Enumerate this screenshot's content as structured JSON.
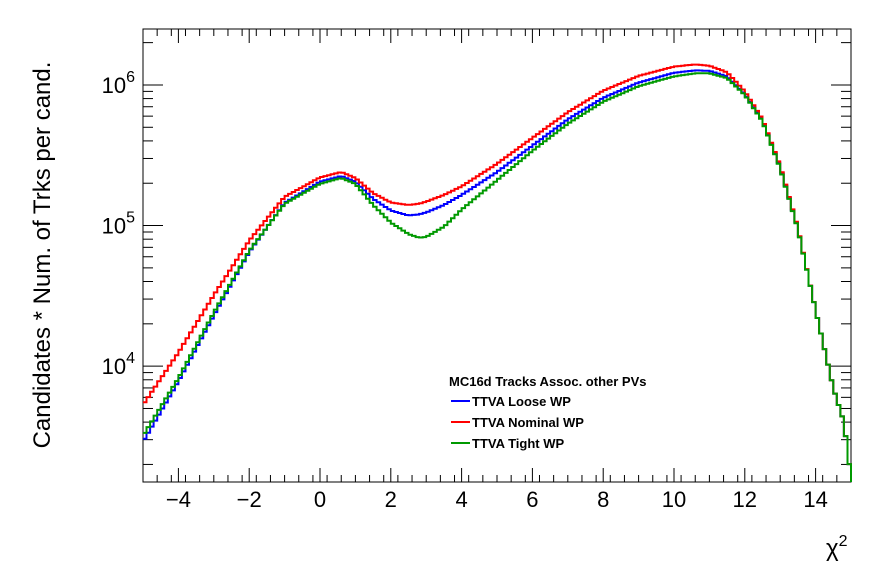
{
  "chart_data": {
    "type": "line",
    "title": "",
    "xlabel": "χ²",
    "ylabel": "Candidates * Num. of Trks per cand.",
    "xlim": [
      -5,
      15
    ],
    "ylim": [
      1500,
      2500000
    ],
    "yscale": "log",
    "grid": false,
    "legend_placement": "bottom-center",
    "legend_header": "MC16d Tracks Assoc. other PVs",
    "x_ticks": [
      -4,
      -2,
      0,
      2,
      4,
      6,
      8,
      10,
      12,
      14
    ],
    "x_tick_labels": [
      "−4",
      "−2",
      "0",
      "2",
      "4",
      "6",
      "8",
      "10",
      "12",
      "14"
    ],
    "y_ticks": [
      10000,
      100000,
      1000000
    ],
    "y_tick_labels": [
      {
        "base": "10",
        "exp": "4"
      },
      {
        "base": "10",
        "exp": "5"
      },
      {
        "base": "10",
        "exp": "6"
      }
    ],
    "x": [
      -5,
      -4,
      -3,
      -2,
      -1,
      0,
      0.6,
      1,
      1.5,
      2,
      2.5,
      2.8,
      3,
      3.5,
      4,
      5,
      6,
      7,
      8,
      9,
      10,
      10.6,
      11,
      11.5,
      12,
      12.5,
      13,
      13.5,
      14,
      14.5,
      14.8,
      15
    ],
    "series": [
      {
        "name": "TTVA Loose WP",
        "color": "#0000ff",
        "values": [
          2900,
          7800,
          23000,
          65000,
          145000,
          205000,
          225000,
          205000,
          155000,
          128000,
          118000,
          120000,
          124000,
          140000,
          165000,
          240000,
          370000,
          570000,
          810000,
          1040000,
          1220000,
          1270000,
          1260000,
          1150000,
          860000,
          560000,
          260000,
          95000,
          25000,
          7000,
          4000,
          1600
        ]
      },
      {
        "name": "TTVA Nominal WP",
        "color": "#ff0000",
        "values": [
          5300,
          12500,
          32000,
          78000,
          160000,
          220000,
          240000,
          218000,
          170000,
          146000,
          140000,
          143000,
          148000,
          165000,
          190000,
          275000,
          420000,
          640000,
          910000,
          1160000,
          1350000,
          1400000,
          1370000,
          1230000,
          900000,
          570000,
          265000,
          96000,
          25000,
          7000,
          4000,
          1600
        ]
      },
      {
        "name": "TTVA Tight WP",
        "color": "#009900",
        "values": [
          3200,
          8200,
          24000,
          66000,
          143000,
          198000,
          218000,
          198000,
          140000,
          105000,
          87000,
          82000,
          83000,
          98000,
          130000,
          210000,
          340000,
          530000,
          760000,
          980000,
          1150000,
          1210000,
          1210000,
          1120000,
          850000,
          550000,
          255000,
          94000,
          25000,
          7000,
          4000,
          1600
        ]
      }
    ]
  }
}
